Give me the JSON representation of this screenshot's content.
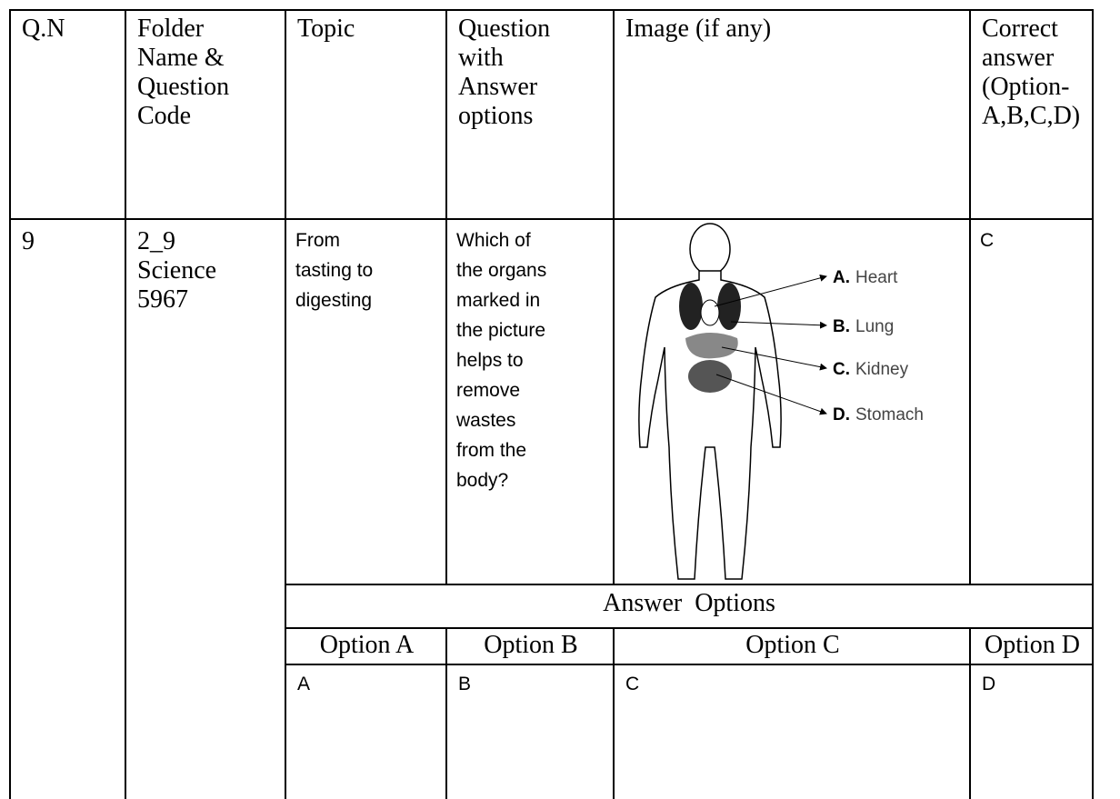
{
  "table": {
    "header": [
      [
        "Q.N"
      ],
      [
        "Folder",
        "Name &",
        "Question",
        "Code"
      ],
      [
        "Topic"
      ],
      [
        "Question",
        "with",
        "Answer",
        "options"
      ],
      [
        "Image (if any)"
      ],
      [
        "Correct",
        "answer",
        "(Option-",
        "A,B,C,D)"
      ]
    ],
    "row": {
      "number": "9",
      "folder": [
        "2_9",
        "Science",
        "5967"
      ],
      "topic": [
        "From",
        "tasting to",
        "digesting"
      ],
      "question": [
        "Which of",
        "the organs",
        "marked in",
        "the picture",
        "helps to",
        "remove",
        "wastes",
        "from the",
        "body?"
      ],
      "correct_answer": "C"
    },
    "figure": {
      "labels": [
        {
          "letter": "A.",
          "name": "Heart"
        },
        {
          "letter": "B.",
          "name": "Lung"
        },
        {
          "letter": "C.",
          "name": "Kidney"
        },
        {
          "letter": "D.",
          "name": "Stomach"
        }
      ]
    },
    "answer_options_title": "Answer  Options",
    "option_headers": [
      "Option A",
      "Option B",
      "Option C",
      "Option D"
    ],
    "option_values": [
      "A",
      "B",
      "C",
      "D"
    ]
  }
}
